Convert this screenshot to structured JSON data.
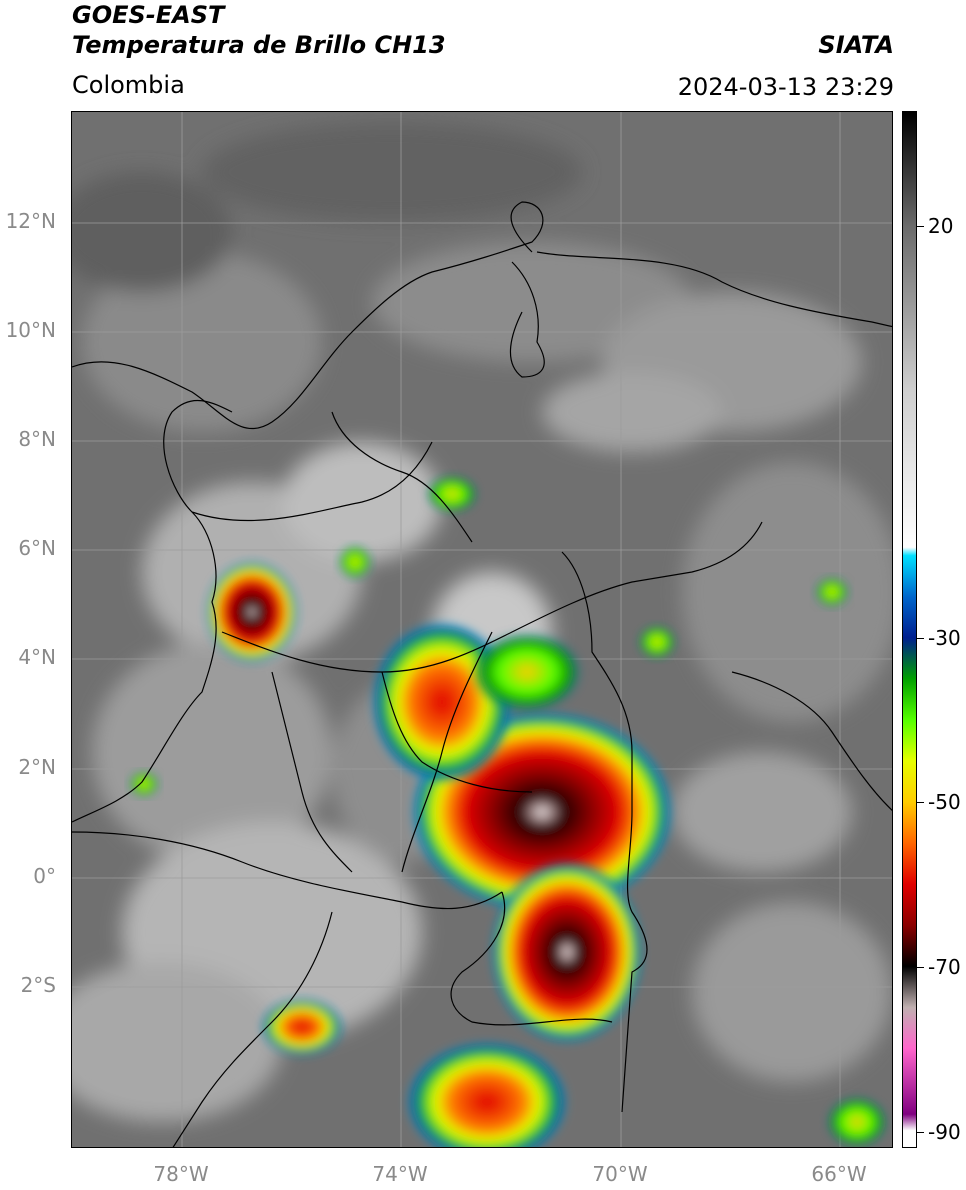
{
  "header": {
    "satellite": "GOES-EAST",
    "product": "Temperatura de Brillo CH13",
    "region": "Colombia",
    "agency": "SIATA",
    "datetime": "2024-03-13 23:29"
  },
  "map": {
    "latitude_labels": [
      "12°N",
      "10°N",
      "8°N",
      "6°N",
      "4°N",
      "2°N",
      "0°",
      "2°S"
    ],
    "longitude_labels": [
      "78°W",
      "74°W",
      "70°W",
      "66°W"
    ],
    "extent": {
      "lon_min": -80.0,
      "lon_max": -65.0,
      "lat_min": -4.9,
      "lat_max": 14.0
    },
    "graticule_color": "#9c9c9c",
    "border_color": "#000000",
    "label_color": "#8a8a8a"
  },
  "colorbar": {
    "tick_labels": [
      "20",
      "-30",
      "-50",
      "-70",
      "-90"
    ],
    "tick_values": [
      20,
      -30,
      -50,
      -70,
      -90
    ],
    "range": [
      -92,
      34
    ],
    "units_note": "",
    "stops": [
      {
        "value": 34,
        "color": "#000000"
      },
      {
        "value": 20,
        "color": "#6b6b6b"
      },
      {
        "value": 0,
        "color": "#cfcfcf"
      },
      {
        "value": -19,
        "color": "#ffffff"
      },
      {
        "value": -20,
        "color": "#00e0ff"
      },
      {
        "value": -25,
        "color": "#0066cc"
      },
      {
        "value": -30,
        "color": "#001f8f"
      },
      {
        "value": -35,
        "color": "#00a000"
      },
      {
        "value": -40,
        "color": "#55ff00"
      },
      {
        "value": -45,
        "color": "#e6ff00"
      },
      {
        "value": -50,
        "color": "#ffcc00"
      },
      {
        "value": -55,
        "color": "#ff6600"
      },
      {
        "value": -60,
        "color": "#e00000"
      },
      {
        "value": -65,
        "color": "#8b0000"
      },
      {
        "value": -70,
        "color": "#000000"
      },
      {
        "value": -75,
        "color": "#c0b0b0"
      },
      {
        "value": -80,
        "color": "#ff66cc"
      },
      {
        "value": -88,
        "color": "#800080"
      },
      {
        "value": -90,
        "color": "#ffffff"
      }
    ]
  }
}
